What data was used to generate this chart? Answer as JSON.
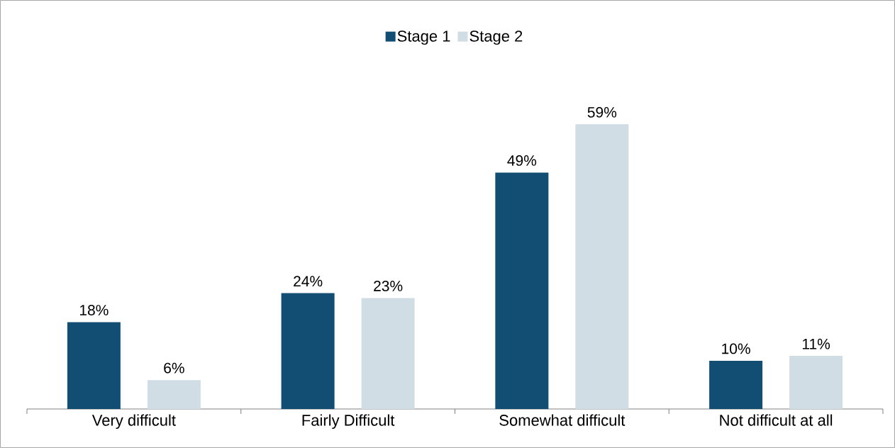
{
  "chart_data": {
    "type": "bar",
    "categories": [
      "Very difficult",
      "Fairly Difficult",
      "Somewhat difficult",
      "Not difficult at all"
    ],
    "series": [
      {
        "name": "Stage 1",
        "color": "#124e73",
        "values": [
          18,
          24,
          49,
          10
        ],
        "value_labels": [
          "18%",
          "24%",
          "49%",
          "10%"
        ]
      },
      {
        "name": "Stage 2",
        "color": "#d1dde4",
        "values": [
          6,
          23,
          59,
          11
        ],
        "value_labels": [
          "6%",
          "23%",
          "59%",
          "11%"
        ]
      }
    ],
    "legend": "top"
  }
}
